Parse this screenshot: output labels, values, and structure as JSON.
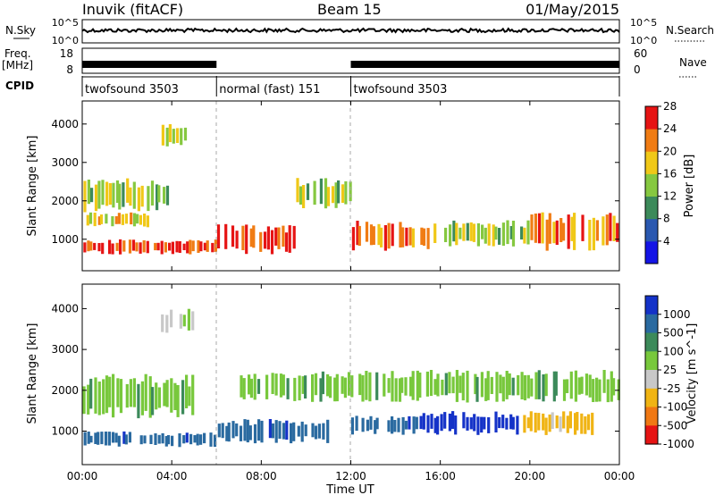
{
  "header": {
    "station": "Inuvik (fitACF)",
    "beam": "Beam 15",
    "date": "01/May/2015"
  },
  "summary": {
    "nsky_label": "N.Sky",
    "nsky_ticks": [
      "10^5",
      "10^0"
    ],
    "nsearch_label": "N.Search",
    "nsearch_ticks": [
      "10^5",
      "10^0"
    ],
    "freq_label_top": "Freq.",
    "freq_label_unit": "[MHz]",
    "freq_ticks": [
      "18",
      "8"
    ],
    "nave_label": "Nave",
    "nave_ticks": [
      "60",
      "0"
    ],
    "cpid_label": "CPID",
    "cpid_segments": [
      {
        "name": "twofsound 3503",
        "start_h": 0,
        "end_h": 6
      },
      {
        "name": "normal (fast) 151",
        "start_h": 6,
        "end_h": 12
      },
      {
        "name": "twofsound 3503",
        "start_h": 12,
        "end_h": 24
      }
    ]
  },
  "chart_data": [
    {
      "type": "heatmap",
      "title": "",
      "ylabel": "Slant Range [km]",
      "xlabel": "Time UT",
      "xlim_hours": [
        0,
        24
      ],
      "ylim": [
        180,
        4600
      ],
      "yticks": [
        1000,
        2000,
        3000,
        4000
      ],
      "xtick_labels": [
        "00:00",
        "04:00",
        "08:00",
        "12:00",
        "16:00",
        "20:00",
        "00:00"
      ],
      "colorbar": {
        "label": "Power [dB]",
        "ticks": [
          "4",
          "8",
          "12",
          "16",
          "20",
          "24",
          "28"
        ],
        "colors": [
          "#1414e6",
          "#2a58b0",
          "#3c8a5a",
          "#86c840",
          "#f0c818",
          "#f07c14",
          "#e61414"
        ]
      },
      "echo_regions": [
        {
          "t0": 0,
          "t1": 6,
          "r0": 600,
          "r1": 1000,
          "value_db": 28
        },
        {
          "t0": 0,
          "t1": 3,
          "r0": 1300,
          "r1": 1700,
          "value_db": 20
        },
        {
          "t0": 0,
          "t1": 4,
          "r0": 1700,
          "r1": 2600,
          "value_db": 14
        },
        {
          "t0": 3.5,
          "t1": 5,
          "r0": 3400,
          "r1": 4000,
          "value_db": 18
        },
        {
          "t0": 6,
          "t1": 9.5,
          "r0": 600,
          "r1": 1400,
          "value_db": 26
        },
        {
          "t0": 9.5,
          "t1": 12,
          "r0": 1800,
          "r1": 2600,
          "value_db": 14
        },
        {
          "t0": 12,
          "t1": 16,
          "r0": 700,
          "r1": 1500,
          "value_db": 22
        },
        {
          "t0": 16,
          "t1": 20,
          "r0": 800,
          "r1": 1500,
          "value_db": 16
        },
        {
          "t0": 20,
          "t1": 24,
          "r0": 700,
          "r1": 1700,
          "value_db": 24
        }
      ]
    },
    {
      "type": "heatmap",
      "title": "",
      "ylabel": "Slant Range [km]",
      "xlabel": "Time UT",
      "xlim_hours": [
        0,
        24
      ],
      "ylim": [
        180,
        4600
      ],
      "yticks": [
        1000,
        2000,
        3000,
        4000
      ],
      "xtick_labels": [
        "00:00",
        "04:00",
        "08:00",
        "12:00",
        "16:00",
        "20:00",
        "00:00"
      ],
      "colorbar": {
        "label": "Velocity [m s^-1]",
        "ticks": [
          "1000",
          "500",
          "100",
          "25",
          "-25",
          "-100",
          "-500",
          "-1000"
        ],
        "colors": [
          "#1432c8",
          "#2a6aa0",
          "#3c8a5a",
          "#78c83c",
          "#c8c8c8",
          "#f0b414",
          "#f07814",
          "#e61414"
        ]
      },
      "echo_regions": [
        {
          "t0": 0,
          "t1": 6,
          "r0": 600,
          "r1": 1000,
          "value_ms": 400
        },
        {
          "t0": 0,
          "t1": 5,
          "r0": 1300,
          "r1": 2400,
          "value_ms": 0
        },
        {
          "t0": 3.5,
          "t1": 5,
          "r0": 3400,
          "r1": 4000,
          "value_ms": -80
        },
        {
          "t0": 6,
          "t1": 11,
          "r0": 700,
          "r1": 1300,
          "value_ms": 350
        },
        {
          "t0": 7,
          "t1": 24,
          "r0": 1700,
          "r1": 2500,
          "value_ms": 0
        },
        {
          "t0": 12,
          "t1": 15,
          "r0": 900,
          "r1": 1400,
          "value_ms": 500
        },
        {
          "t0": 15,
          "t1": 19.5,
          "r0": 900,
          "r1": 1500,
          "value_ms": 900
        },
        {
          "t0": 19.5,
          "t1": 23,
          "r0": 900,
          "r1": 1500,
          "value_ms": -300
        }
      ]
    }
  ]
}
